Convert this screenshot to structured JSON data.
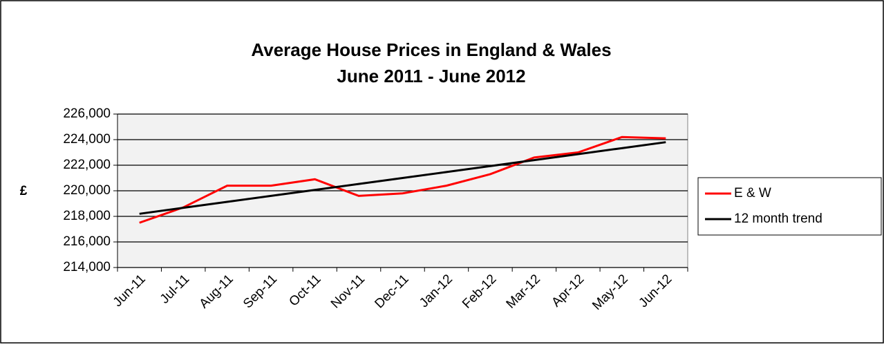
{
  "chart_data": {
    "type": "line",
    "title": [
      "Average House Prices in England & Wales",
      "June 2011 - June 2012"
    ],
    "y_label": "£",
    "categories": [
      "Jun-11",
      "Jul-11",
      "Aug-11",
      "Sep-11",
      "Oct-11",
      "Nov-11",
      "Dec-11",
      "Jan-12",
      "Feb-12",
      "Mar-12",
      "Apr-12",
      "May-12",
      "Jun-12"
    ],
    "series": [
      {
        "name": "E & W",
        "color": "#ff0000",
        "values": [
          217500,
          218700,
          220400,
          220400,
          220900,
          219600,
          219800,
          220400,
          221300,
          222600,
          223000,
          224200,
          224100
        ]
      },
      {
        "name": "12 month trend",
        "color": "#000000",
        "values": [
          218200,
          218667,
          219133,
          219600,
          220067,
          220533,
          221000,
          221467,
          221933,
          222400,
          222867,
          223333,
          223800
        ]
      }
    ],
    "ylim": [
      214000,
      226000
    ],
    "yticks": [
      {
        "value": 214000,
        "label": "214,000"
      },
      {
        "value": 216000,
        "label": "216,000"
      },
      {
        "value": 218000,
        "label": "218,000"
      },
      {
        "value": 220000,
        "label": "220,000"
      },
      {
        "value": 222000,
        "label": "222,000"
      },
      {
        "value": 224000,
        "label": "224,000"
      },
      {
        "value": 226000,
        "label": "226,000"
      }
    ],
    "grid": true,
    "legend": "right"
  }
}
